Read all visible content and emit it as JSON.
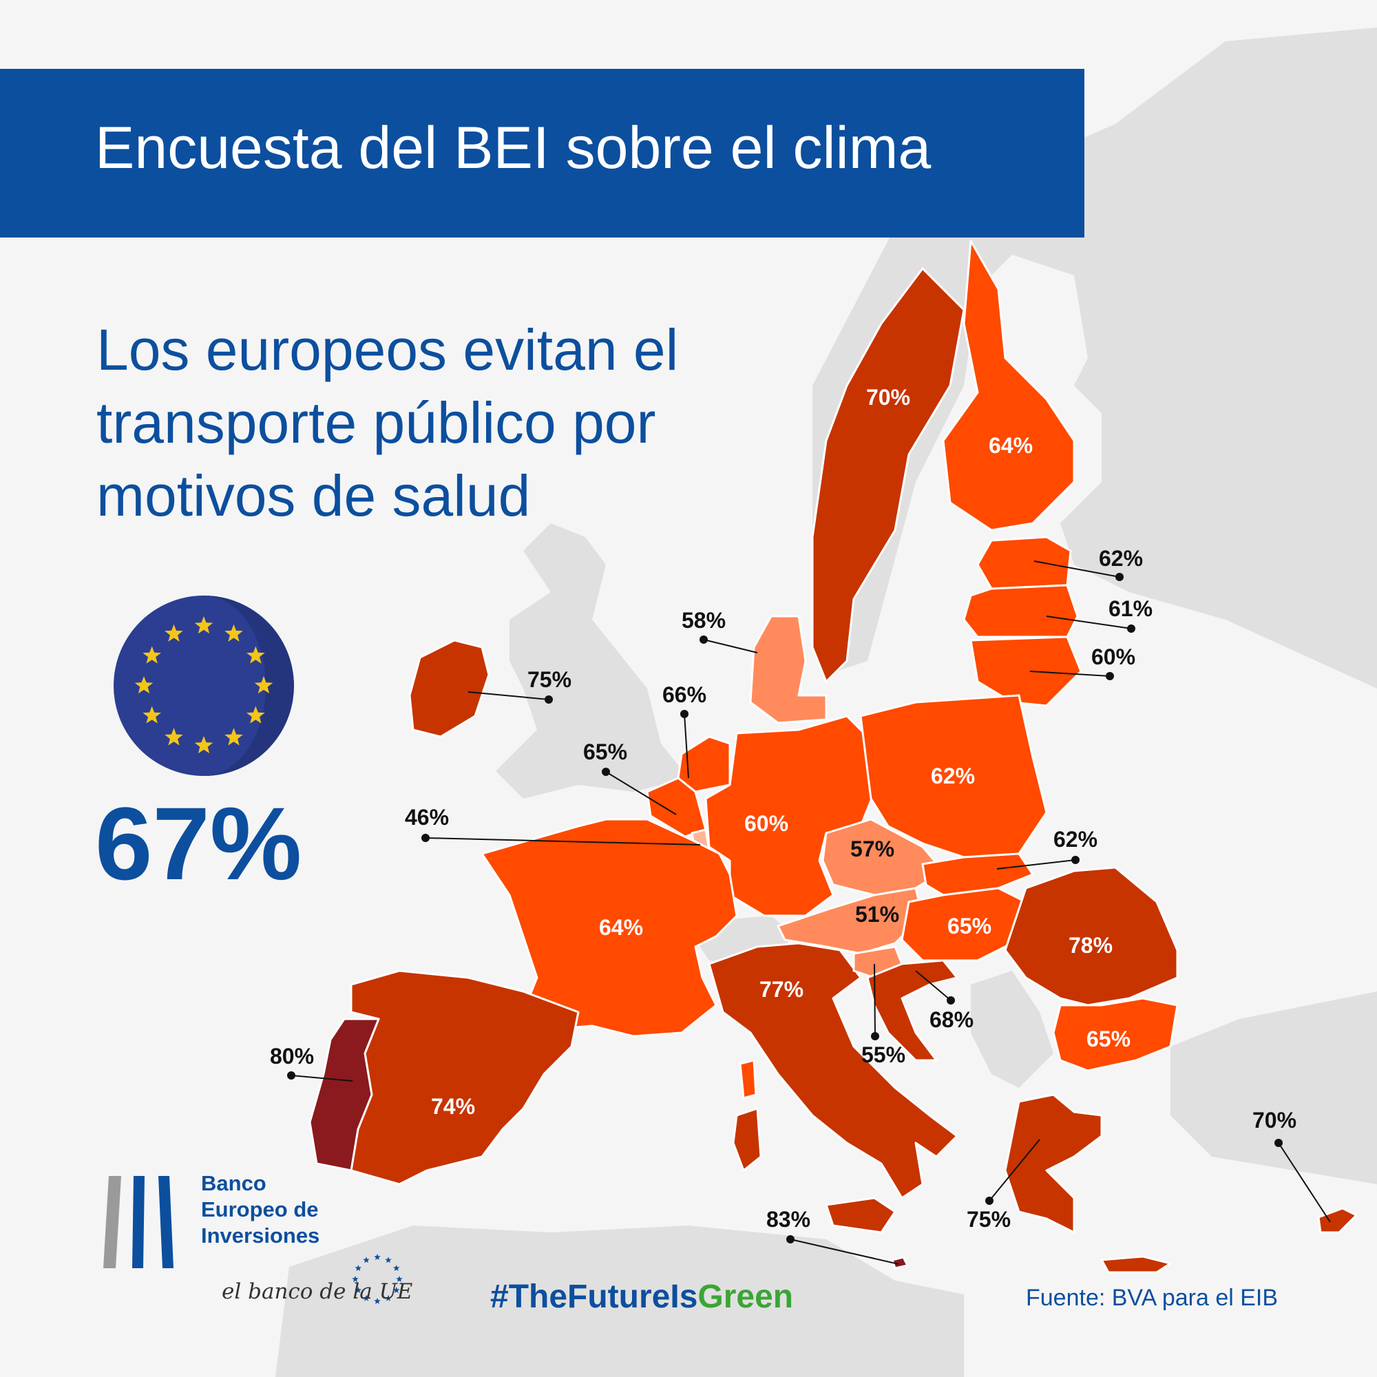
{
  "banner": {
    "title": "Encuesta del BEI sobre el clima"
  },
  "headline": {
    "lines": [
      "Los europeos evitan el",
      "transporte público por",
      "motivos de salud"
    ]
  },
  "eu_average": {
    "value": "67%"
  },
  "countries": [
    {
      "key": "sweden",
      "value": 70,
      "label": "70%",
      "color": "#c73400"
    },
    {
      "key": "finland",
      "value": 64,
      "label": "64%",
      "color": "#ff4a00"
    },
    {
      "key": "estonia",
      "value": 62,
      "label": "62%",
      "color": "#ff4a00"
    },
    {
      "key": "latvia",
      "value": 61,
      "label": "61%",
      "color": "#ff4a00"
    },
    {
      "key": "lithuania",
      "value": 60,
      "label": "60%",
      "color": "#ff4a00"
    },
    {
      "key": "denmark",
      "value": 58,
      "label": "58%",
      "color": "#ff8a5c"
    },
    {
      "key": "ireland",
      "value": 75,
      "label": "75%",
      "color": "#c73400"
    },
    {
      "key": "netherlands",
      "value": 66,
      "label": "66%",
      "color": "#ff4a00"
    },
    {
      "key": "belgium",
      "value": 65,
      "label": "65%",
      "color": "#ff4a00"
    },
    {
      "key": "luxembourg",
      "value": 46,
      "label": "46%",
      "color": "#ffb596"
    },
    {
      "key": "germany",
      "value": 60,
      "label": "60%",
      "color": "#ff4a00"
    },
    {
      "key": "poland",
      "value": 62,
      "label": "62%",
      "color": "#ff4a00"
    },
    {
      "key": "czechia",
      "value": 57,
      "label": "57%",
      "color": "#ff8a5c"
    },
    {
      "key": "slovakia",
      "value": 62,
      "label": "62%",
      "color": "#ff4a00"
    },
    {
      "key": "austria",
      "value": 51,
      "label": "51%",
      "color": "#ff8a5c"
    },
    {
      "key": "hungary",
      "value": 65,
      "label": "65%",
      "color": "#ff4a00"
    },
    {
      "key": "romania",
      "value": 78,
      "label": "78%",
      "color": "#c73400"
    },
    {
      "key": "bulgaria",
      "value": 65,
      "label": "65%",
      "color": "#ff4a00"
    },
    {
      "key": "france",
      "value": 64,
      "label": "64%",
      "color": "#ff4a00"
    },
    {
      "key": "italy",
      "value": 77,
      "label": "77%",
      "color": "#c73400"
    },
    {
      "key": "slovenia",
      "value": 55,
      "label": "55%",
      "color": "#ff8a5c"
    },
    {
      "key": "croatia",
      "value": 68,
      "label": "68%",
      "color": "#c73400"
    },
    {
      "key": "greece",
      "value": 75,
      "label": "75%",
      "color": "#c73400"
    },
    {
      "key": "cyprus",
      "value": 70,
      "label": "70%",
      "color": "#c73400"
    },
    {
      "key": "malta",
      "value": 83,
      "label": "83%",
      "color": "#8a1a1e"
    },
    {
      "key": "spain",
      "value": 74,
      "label": "74%",
      "color": "#c73400"
    },
    {
      "key": "portugal",
      "value": 80,
      "label": "80%",
      "color": "#8a1a1e"
    }
  ],
  "logo": {
    "name_lines": [
      "Banco",
      "Europeo de",
      "Inversiones"
    ],
    "tagline": "el banco de la UE"
  },
  "hashtag": {
    "part1": "#TheFutureIs",
    "part2": "Green"
  },
  "source": "Fuente: BVA para el EIB",
  "colors": {
    "brand_blue": "#0c4f9e",
    "eu_flag": "#2b3e91",
    "eu_star": "#f5c518",
    "land_grey": "#e0e0e0",
    "sea": "#f5f5f5"
  },
  "icons": {
    "eu_flag": "eu-flag-icon",
    "bank_logo": "eib-logo-icon"
  }
}
